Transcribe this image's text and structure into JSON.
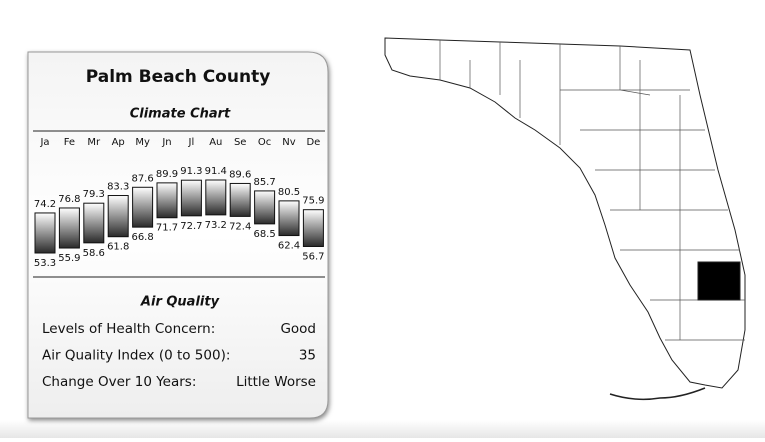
{
  "card": {
    "title": "Palm Beach County"
  },
  "chart_data": {
    "type": "range-bar",
    "title": "Climate Chart",
    "categories": [
      "Ja",
      "Fe",
      "Mr",
      "Ap",
      "My",
      "Jn",
      "Jl",
      "Au",
      "Se",
      "Oc",
      "Nv",
      "De"
    ],
    "high": [
      74.2,
      76.8,
      79.3,
      83.3,
      87.6,
      89.9,
      91.3,
      91.4,
      89.6,
      85.7,
      80.5,
      75.9
    ],
    "low": [
      53.3,
      55.9,
      58.6,
      61.8,
      66.8,
      71.7,
      72.7,
      73.2,
      72.4,
      68.5,
      62.4,
      56.7
    ]
  },
  "air_quality": {
    "title": "Air Quality",
    "rows": [
      [
        "Levels of Health Concern:",
        "Good"
      ],
      [
        "Air Quality Index (0 to 500):",
        "35"
      ],
      [
        "Change Over 10 Years:",
        "Little Worse"
      ]
    ]
  }
}
